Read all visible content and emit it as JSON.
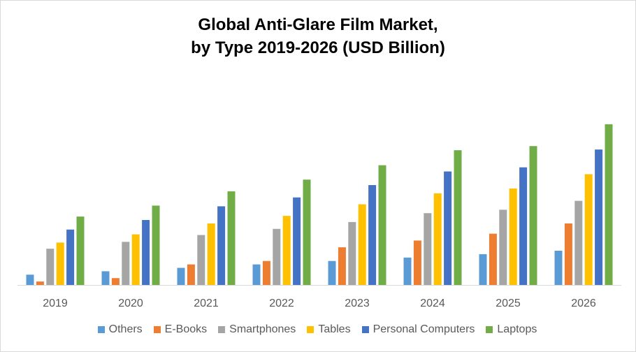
{
  "chart_data": {
    "type": "bar",
    "title_line1": "Global Anti-Glare Film Market,",
    "title_line2": "by Type 2019-2026 (USD Billion)",
    "xlabel": "",
    "ylabel": "",
    "y_axis_visible": false,
    "grid": false,
    "legend_position": "bottom",
    "ylim": [
      0,
      240
    ],
    "categories": [
      "2019",
      "2020",
      "2021",
      "2022",
      "2023",
      "2024",
      "2025",
      "2026"
    ],
    "series": [
      {
        "name": "Others",
        "color": "#5b9bd5",
        "values": [
          15,
          20,
          25,
          30,
          35,
          40,
          45,
          50
        ]
      },
      {
        "name": "E-Books",
        "color": "#ed7d31",
        "values": [
          5,
          10,
          30,
          35,
          55,
          65,
          75,
          90
        ]
      },
      {
        "name": "Smartphones",
        "color": "#a5a5a5",
        "values": [
          53,
          63,
          73,
          82,
          92,
          105,
          110,
          123
        ]
      },
      {
        "name": "Tables",
        "color": "#ffc000",
        "values": [
          62,
          74,
          90,
          101,
          118,
          134,
          141,
          162
        ]
      },
      {
        "name": "Personal Computers",
        "color": "#4472c4",
        "values": [
          81,
          95,
          115,
          128,
          146,
          166,
          172,
          198
        ]
      },
      {
        "name": "Laptops",
        "color": "#70ad47",
        "values": [
          100,
          116,
          137,
          154,
          175,
          197,
          203,
          235
        ]
      }
    ]
  }
}
